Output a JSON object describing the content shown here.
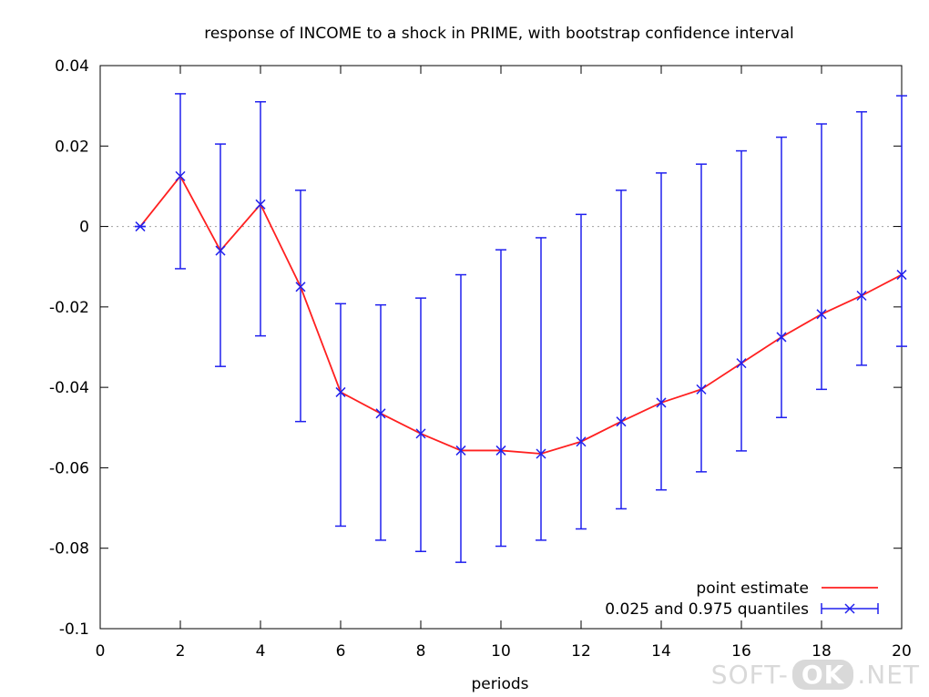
{
  "chart_data": {
    "type": "line",
    "title": "response of INCOME to a shock in PRIME, with bootstrap confidence interval",
    "xlabel": "periods",
    "ylabel": "",
    "xlim": [
      0,
      20
    ],
    "ylim": [
      -0.1,
      0.04
    ],
    "xticks": [
      0,
      2,
      4,
      6,
      8,
      10,
      12,
      14,
      16,
      18,
      20
    ],
    "xtick_labels": [
      "0",
      "2",
      "4",
      "6",
      "8",
      "10",
      "12",
      "14",
      "16",
      "18",
      "20"
    ],
    "yticks": [
      0.04,
      0.02,
      0,
      -0.02,
      -0.04,
      -0.06,
      -0.08,
      -0.1
    ],
    "ytick_labels": [
      "0.04",
      "0.02",
      "0",
      "-0.02",
      "-0.04",
      "-0.06",
      "-0.08",
      "-0.1"
    ],
    "zero_line": true,
    "legend_position": "bottom-right",
    "series": [
      {
        "name": "point estimate",
        "color": "#ff2020",
        "x": [
          1,
          2,
          3,
          4,
          5,
          6,
          7,
          8,
          9,
          10,
          11,
          12,
          13,
          14,
          15,
          16,
          17,
          18,
          19,
          20
        ],
        "values": [
          0.0,
          0.0125,
          -0.006,
          0.0055,
          -0.015,
          -0.0412,
          -0.0465,
          -0.0515,
          -0.0557,
          -0.0557,
          -0.0565,
          -0.0535,
          -0.0485,
          -0.0438,
          -0.0405,
          -0.034,
          -0.0275,
          -0.0218,
          -0.0172,
          -0.012
        ]
      },
      {
        "name": "0.025 and 0.975 quantiles",
        "color": "#2020ee",
        "x": [
          1,
          2,
          3,
          4,
          5,
          6,
          7,
          8,
          9,
          10,
          11,
          12,
          13,
          14,
          15,
          16,
          17,
          18,
          19,
          20
        ],
        "lower": [
          0.0,
          -0.0105,
          -0.0348,
          -0.0272,
          -0.0485,
          -0.0745,
          -0.078,
          -0.0808,
          -0.0835,
          -0.0795,
          -0.078,
          -0.0752,
          -0.0702,
          -0.0655,
          -0.061,
          -0.0558,
          -0.0475,
          -0.0405,
          -0.0345,
          -0.0298
        ],
        "upper": [
          0.0,
          0.033,
          0.0205,
          0.031,
          0.009,
          -0.0192,
          -0.0195,
          -0.0178,
          -0.012,
          -0.0058,
          -0.0028,
          0.003,
          0.009,
          0.0133,
          0.0155,
          0.0188,
          0.0222,
          0.0255,
          0.0285,
          0.0325
        ]
      }
    ]
  },
  "watermark": {
    "left": "SOFT-",
    "badge": "OK",
    "right": ".NET"
  }
}
